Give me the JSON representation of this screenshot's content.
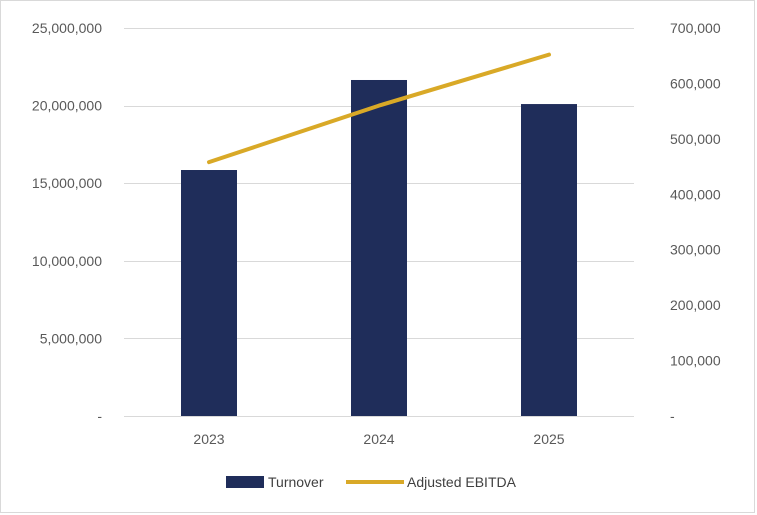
{
  "chart_data": {
    "type": "bar",
    "categories": [
      "2023",
      "2024",
      "2025"
    ],
    "series": [
      {
        "name": "Turnover",
        "type": "bar",
        "axis": "left",
        "color": "#1f2d5a",
        "values": [
          15850000,
          21650000,
          20100000
        ]
      },
      {
        "name": "Adjusted EBITDA",
        "type": "line",
        "axis": "right",
        "color": "#d9a927",
        "values": [
          458000,
          560000,
          652000
        ]
      }
    ],
    "y_left": {
      "min": 0,
      "max": 25000000,
      "step": 5000000,
      "tick_labels": [
        "-",
        "5,000,000",
        "10,000,000",
        "15,000,000",
        "20,000,000",
        "25,000,000"
      ]
    },
    "y_right": {
      "min": 0,
      "max": 700000,
      "step": 100000,
      "tick_labels": [
        "-",
        "100,000",
        "200,000",
        "300,000",
        "400,000",
        "500,000",
        "600,000",
        "700,000"
      ]
    },
    "grid": true,
    "legend_position": "bottom"
  }
}
